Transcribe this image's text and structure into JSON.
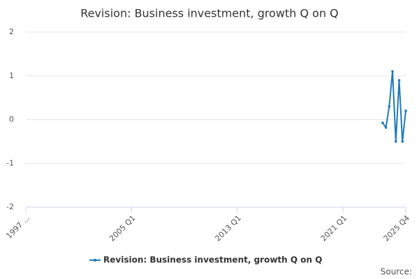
{
  "chart_data": {
    "type": "line",
    "title": "Revision: Business investment, growth Q on Q",
    "categories": [
      "1997 ...",
      null,
      null,
      null,
      null,
      null,
      null,
      null,
      null,
      null,
      null,
      null,
      null,
      null,
      null,
      null,
      null,
      null,
      null,
      null,
      null,
      null,
      null,
      null,
      null,
      null,
      null,
      null,
      null,
      null,
      null,
      null,
      "2005 Q1",
      null,
      null,
      null,
      null,
      null,
      null,
      null,
      null,
      null,
      null,
      null,
      null,
      null,
      null,
      null,
      null,
      null,
      null,
      null,
      null,
      null,
      null,
      null,
      null,
      null,
      null,
      null,
      null,
      null,
      null,
      null,
      "2013 Q1",
      null,
      null,
      null,
      null,
      null,
      null,
      null,
      null,
      null,
      null,
      null,
      null,
      null,
      null,
      null,
      null,
      null,
      null,
      null,
      null,
      null,
      null,
      null,
      null,
      null,
      null,
      null,
      null,
      null,
      null,
      null,
      "2021 Q1",
      null,
      null,
      null,
      null,
      null,
      null,
      null,
      null,
      null,
      null,
      null,
      null,
      null,
      null,
      null,
      null,
      null,
      null,
      "2025 Q4"
    ],
    "series": [
      {
        "name": "Revision: Business investment, growth Q on Q",
        "color": "#1f7ab8",
        "values": [
          null,
          null,
          null,
          null,
          null,
          null,
          null,
          null,
          null,
          null,
          null,
          null,
          null,
          null,
          null,
          null,
          null,
          null,
          null,
          null,
          null,
          null,
          null,
          null,
          null,
          null,
          null,
          null,
          null,
          null,
          null,
          null,
          null,
          null,
          null,
          null,
          null,
          null,
          null,
          null,
          null,
          null,
          null,
          null,
          null,
          null,
          null,
          null,
          null,
          null,
          null,
          null,
          null,
          null,
          null,
          null,
          null,
          null,
          null,
          null,
          null,
          null,
          null,
          null,
          null,
          null,
          null,
          null,
          null,
          null,
          null,
          null,
          null,
          null,
          null,
          null,
          null,
          null,
          null,
          null,
          null,
          null,
          null,
          null,
          null,
          null,
          null,
          null,
          null,
          null,
          null,
          null,
          null,
          null,
          null,
          null,
          null,
          null,
          null,
          null,
          null,
          null,
          null,
          null,
          null,
          null,
          null,
          null,
          -0.07,
          -0.18,
          0.3,
          1.1,
          -0.5,
          0.9,
          -0.5,
          0.2
        ]
      }
    ],
    "ylim": [
      -2,
      2
    ],
    "yticks": [
      2,
      1,
      0,
      -1,
      -2
    ],
    "grid": true,
    "source": "Source:"
  }
}
